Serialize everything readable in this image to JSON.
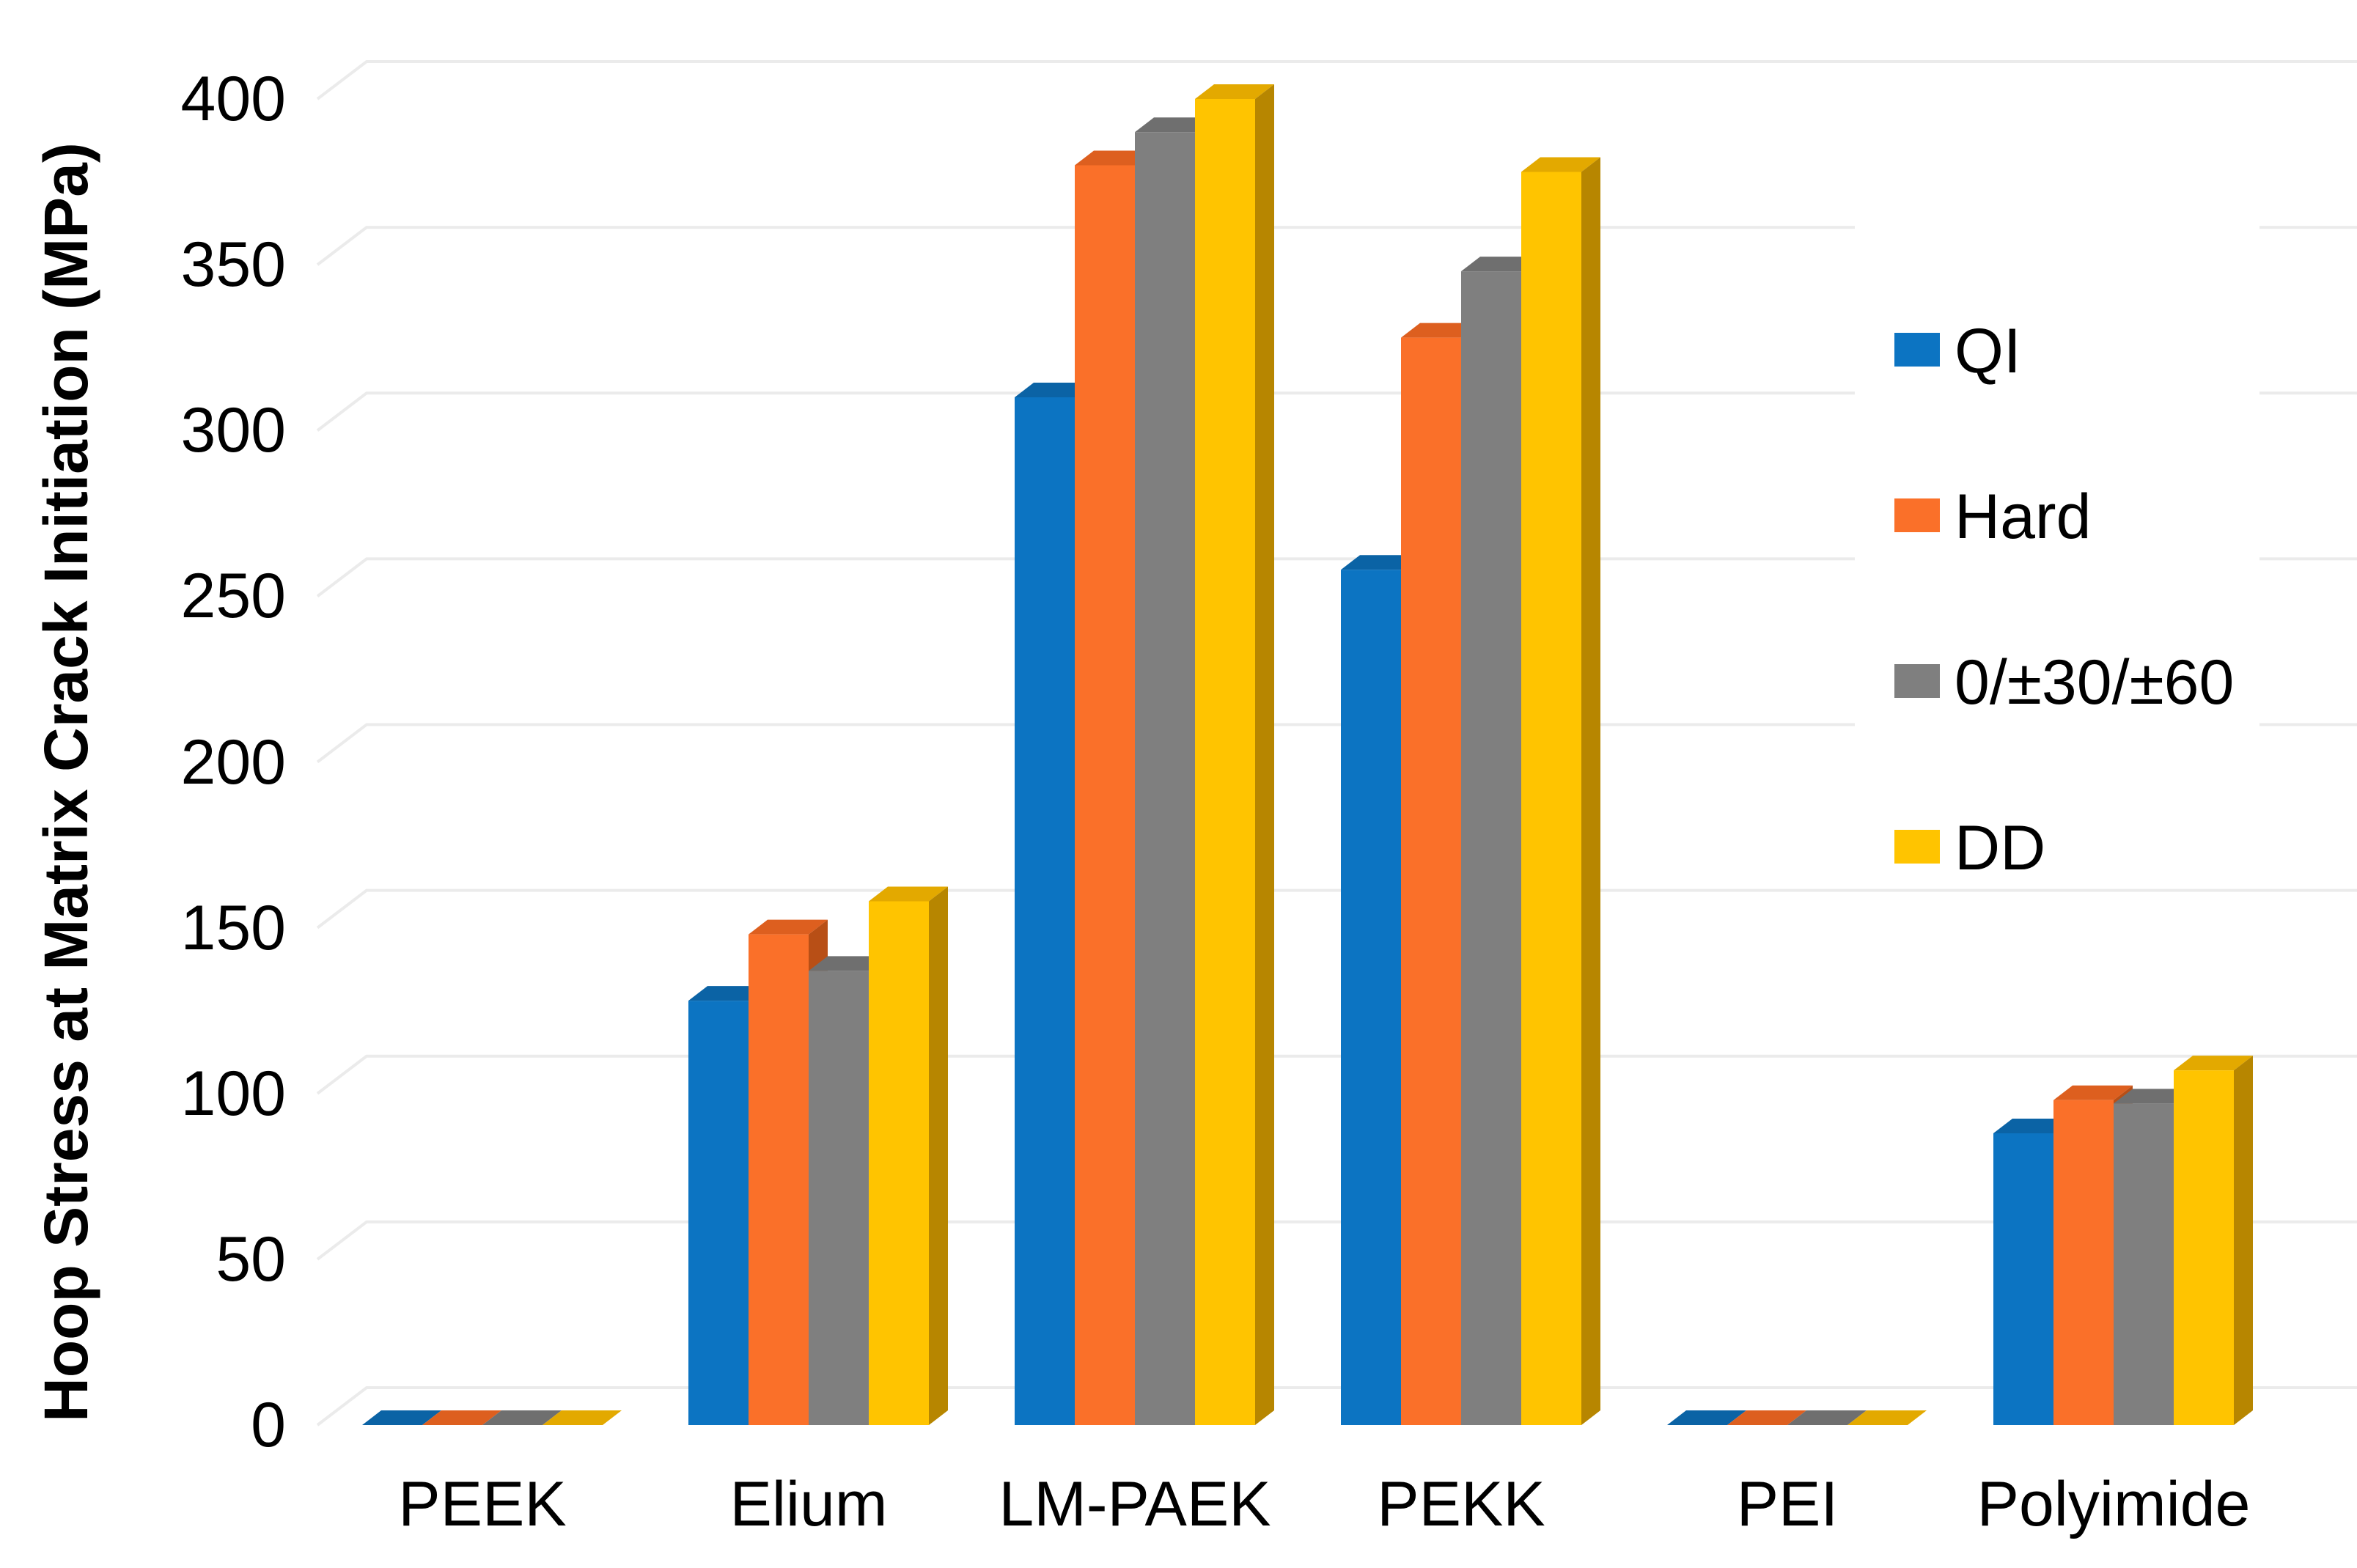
{
  "chart_data": {
    "type": "bar",
    "style": "3d-clustered-column",
    "title": "",
    "xlabel": "",
    "ylabel": "Hoop Stress at Matrix Crack Initiation (MPa)",
    "categories": [
      "PEEK",
      "Elium",
      "LM-PAEK",
      "PEKK",
      "PEI",
      "Polyimide"
    ],
    "series": [
      {
        "name": "QI",
        "color": "#0C74C2",
        "top": "#0B63A5",
        "side": "#094F85",
        "values": [
          0,
          128,
          310,
          258,
          0,
          88
        ]
      },
      {
        "name": "Hard",
        "color": "#FA7029",
        "top": "#DD5F1F",
        "side": "#B84F16",
        "values": [
          0,
          148,
          380,
          328,
          0,
          98
        ]
      },
      {
        "name": "0/±30/±60",
        "color": "#7F7F7F",
        "top": "#6F6F6F",
        "side": "#5C5C5C",
        "values": [
          0,
          137,
          390,
          348,
          0,
          97
        ]
      },
      {
        "name": "DD",
        "color": "#FFC400",
        "top": "#E3A900",
        "side": "#B78600",
        "values": [
          0,
          158,
          400,
          378,
          0,
          107
        ]
      }
    ],
    "ylim": [
      0,
      400
    ],
    "ytick_step": 50,
    "yticks": [
      "400",
      "350",
      "300",
      "250",
      "200",
      "150",
      "100",
      "50",
      "0"
    ],
    "grid": true,
    "gridline_color": "#EBEBEB",
    "legend_position": "right",
    "background_color": "#FFFFFF",
    "text_color": "#000000"
  }
}
